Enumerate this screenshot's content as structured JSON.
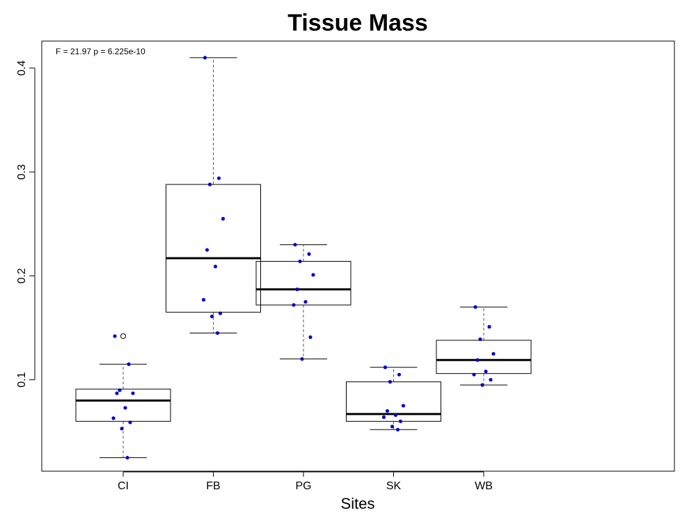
{
  "chart_data": {
    "type": "box",
    "title": "Tissue Mass",
    "xlabel": "Sites",
    "ylabel": "",
    "annotation": "F = 21.97 p = 6.225e-10",
    "categories": [
      "CI",
      "FB",
      "PG",
      "SK",
      "WB"
    ],
    "ylim": [
      0.012,
      0.426
    ],
    "y_ticks": [
      0.1,
      0.2,
      0.3,
      0.4
    ],
    "y_tick_labels": [
      "0.1",
      "0.2",
      "0.3",
      "0.4"
    ],
    "grid": false,
    "colors": {
      "points": "#0000cc",
      "box": "#000000",
      "outlier": "#000000"
    },
    "boxes": [
      {
        "category": "CI",
        "whisker_low": 0.025,
        "q1": 0.06,
        "median": 0.08,
        "q3": 0.091,
        "whisker_high": 0.115,
        "outliers": [
          0.142
        ]
      },
      {
        "category": "FB",
        "whisker_low": 0.145,
        "q1": 0.165,
        "median": 0.217,
        "q3": 0.288,
        "whisker_high": 0.41,
        "outliers": []
      },
      {
        "category": "PG",
        "whisker_low": 0.12,
        "q1": 0.172,
        "median": 0.187,
        "q3": 0.214,
        "whisker_high": 0.23,
        "outliers": []
      },
      {
        "category": "SK",
        "whisker_low": 0.052,
        "q1": 0.06,
        "median": 0.067,
        "q3": 0.098,
        "whisker_high": 0.112,
        "outliers": []
      },
      {
        "category": "WB",
        "whisker_low": 0.095,
        "q1": 0.106,
        "median": 0.119,
        "q3": 0.138,
        "whisker_high": 0.17,
        "outliers": []
      }
    ],
    "points": [
      {
        "category": "CI",
        "values": [
          0.142,
          0.115,
          0.09,
          0.087,
          0.087,
          0.073,
          0.063,
          0.059,
          0.053,
          0.025
        ]
      },
      {
        "category": "FB",
        "values": [
          0.41,
          0.294,
          0.288,
          0.255,
          0.225,
          0.209,
          0.177,
          0.164,
          0.161,
          0.145
        ]
      },
      {
        "category": "PG",
        "values": [
          0.23,
          0.221,
          0.214,
          0.201,
          0.187,
          0.175,
          0.172,
          0.141,
          0.12
        ]
      },
      {
        "category": "SK",
        "values": [
          0.112,
          0.105,
          0.098,
          0.075,
          0.07,
          0.066,
          0.064,
          0.06,
          0.055,
          0.052
        ]
      },
      {
        "category": "WB",
        "values": [
          0.17,
          0.151,
          0.139,
          0.125,
          0.119,
          0.108,
          0.105,
          0.1,
          0.095
        ]
      }
    ]
  }
}
